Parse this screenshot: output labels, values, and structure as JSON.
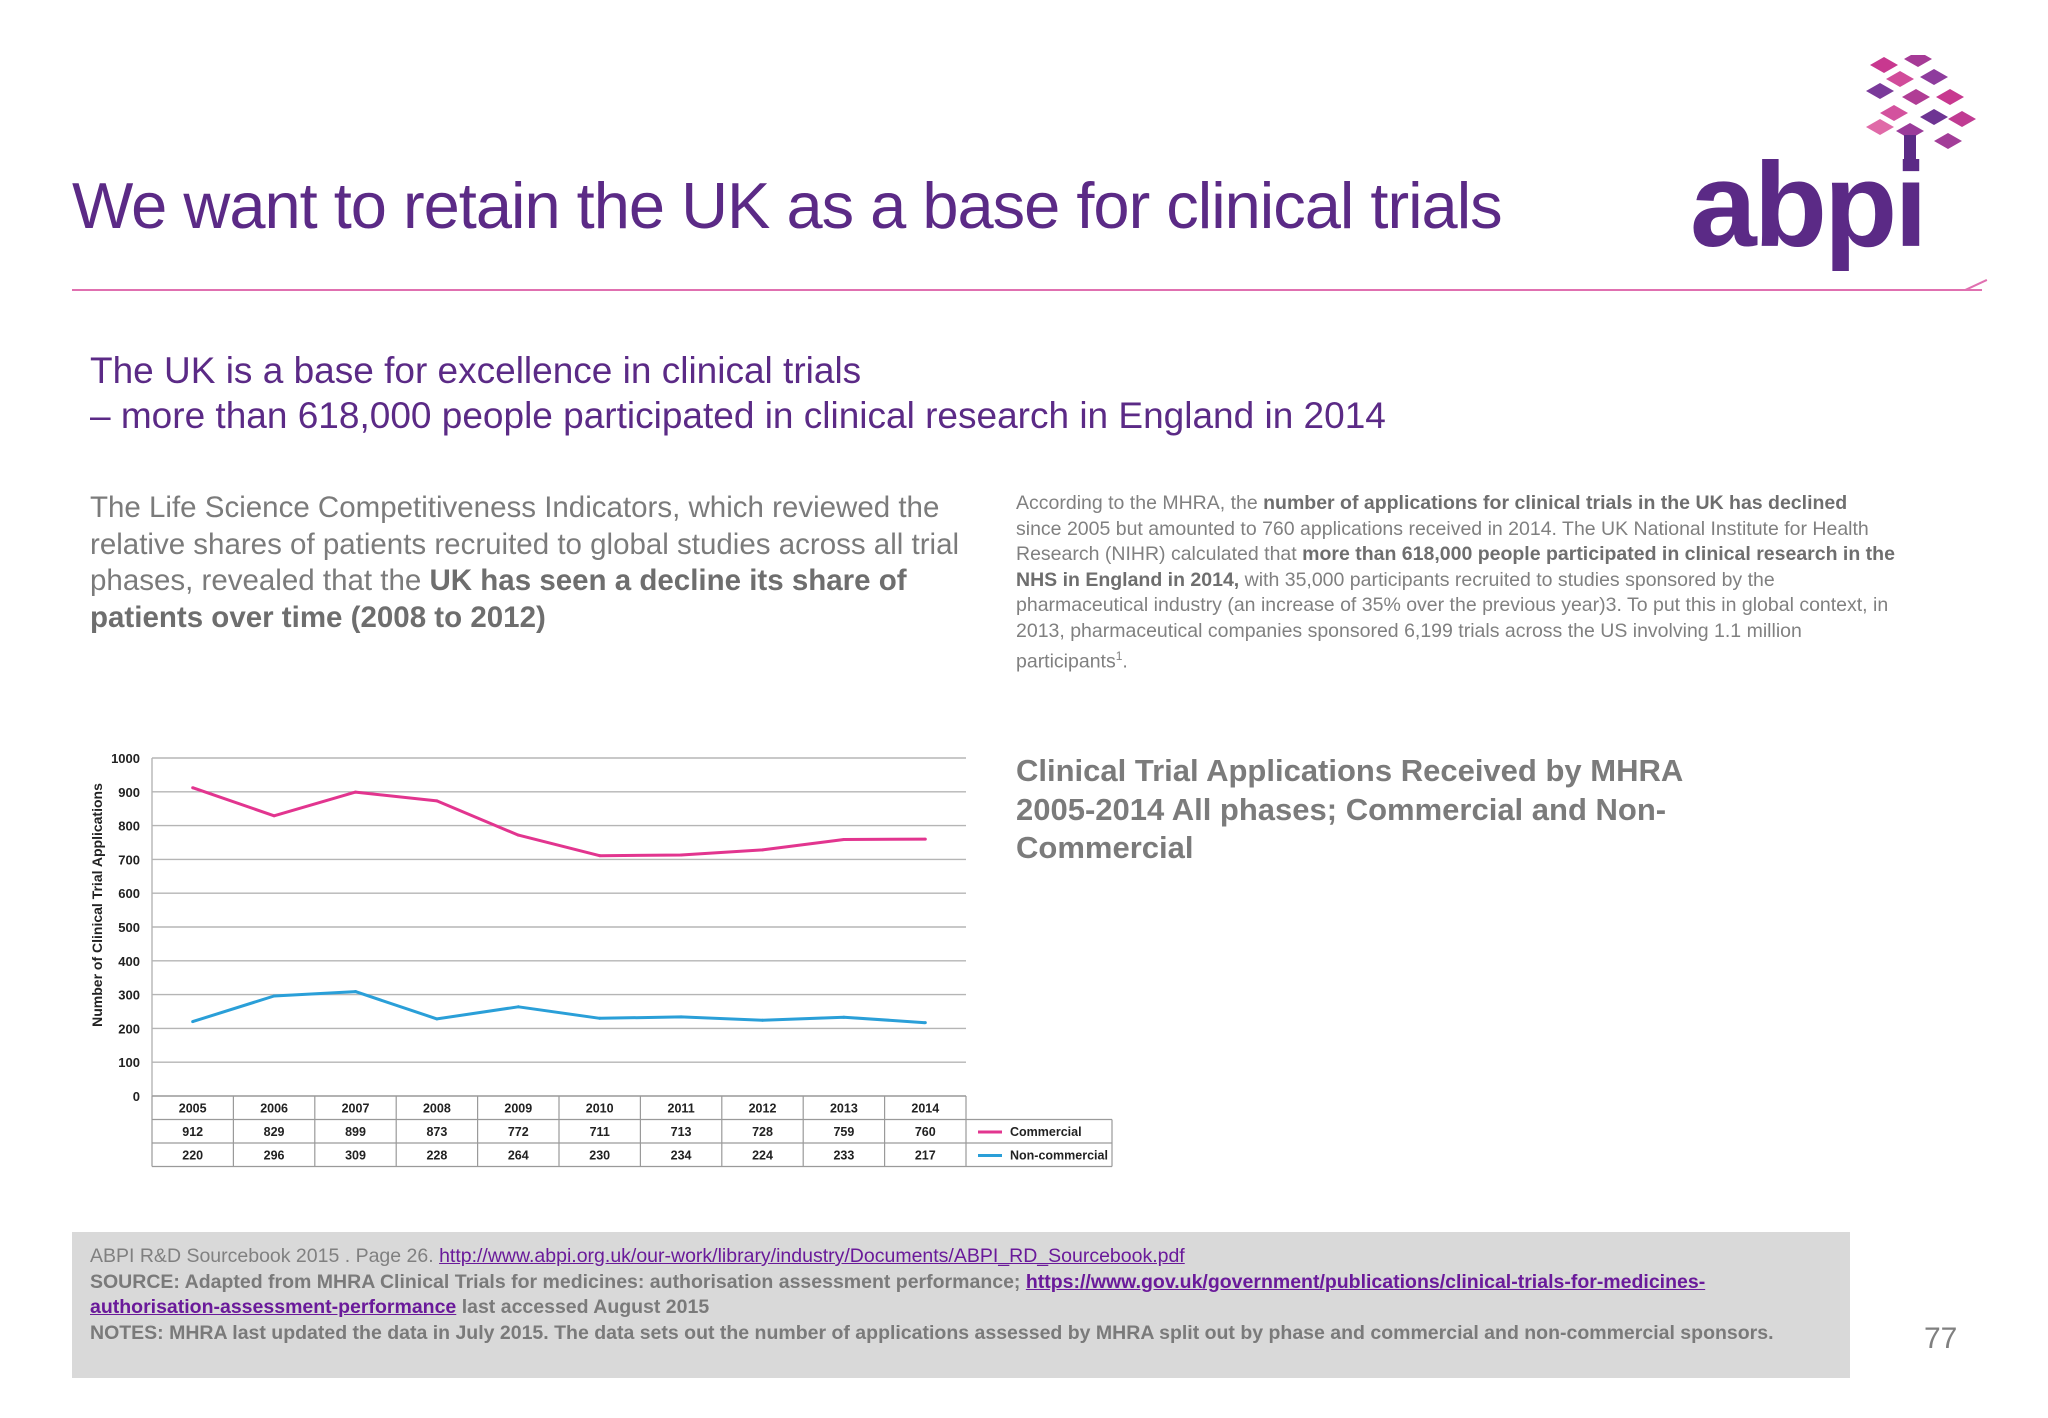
{
  "header": {
    "title": "We want to retain the UK as a base for clinical trials",
    "logo_text": "abpi"
  },
  "subhead": {
    "line1": "The UK is a base for excellence in clinical trials",
    "line2": "– more than 618,000 people participated in clinical research in England in 2014"
  },
  "left_paragraph": {
    "text1": "The Life Science Competitiveness Indicators, which reviewed the relative shares of patients recruited to global studies across all trial phases, revealed that the ",
    "bold": "UK has seen a decline its share of patients over time (2008 to 2012)"
  },
  "right_paragraph": {
    "t1": "According to the MHRA, the ",
    "b1": "number of applications for clinical trials in the UK has declined",
    "t2": " since 2005 but amounted to 760 applications received in 2014. The UK National Institute for Health Research (NIHR) calculated that ",
    "b2": "more than 618,000 people participated in clinical research in the NHS in England in 2014,",
    "t3": " with 35,000 participants recruited to studies sponsored by the pharmaceutical industry (an increase of 35% over the previous year)3. To put this in global context, in 2013, pharmaceutical companies sponsored 6,199 trials across the US involving 1.1 million participants",
    "sup": "1",
    "t4": "."
  },
  "chart_heading": "Clinical Trial Applications Received by MHRA 2005-2014 All phases; Commercial and Non-Commercial",
  "chart_data": {
    "type": "line",
    "ylabel": "Number of Clinical Trial Applications",
    "ylim": [
      0,
      1000
    ],
    "yticks": [
      0,
      100,
      200,
      300,
      400,
      500,
      600,
      700,
      800,
      900,
      1000
    ],
    "x": [
      "2005",
      "2006",
      "2007",
      "2008",
      "2009",
      "2010",
      "2011",
      "2012",
      "2013",
      "2014"
    ],
    "series": [
      {
        "name": "Commercial",
        "color": "#e2358f",
        "values": [
          912,
          829,
          899,
          873,
          772,
          711,
          713,
          728,
          759,
          760
        ]
      },
      {
        "name": "Non-commercial",
        "color": "#2a9fd8",
        "values": [
          220,
          296,
          309,
          228,
          264,
          230,
          234,
          224,
          233,
          217
        ]
      }
    ],
    "grid": true,
    "legend": "table-right"
  },
  "footer": {
    "line1_text": "ABPI R&D Sourcebook 2015 . Page 26. ",
    "line1_link": "http://www.abpi.org.uk/our-work/library/industry/Documents/ABPI_RD_Sourcebook.pdf",
    "source_text": "SOURCE: Adapted from MHRA Clinical Trials for medicines: authorisation assessment performance; ",
    "source_link": "https://www.gov.uk/government/publications/clinical-trials-for-medicines-authorisation-assessment-performance",
    "source_tail": " last accessed August 2015",
    "notes": "NOTES: MHRA last updated the data in July 2015. The data sets out the number of applications assessed by MHRA split out by phase and commercial and non-commercial sponsors."
  },
  "page_number": "77",
  "colors": {
    "brand_purple": "#5b2a86",
    "accent_pink": "#e070b0"
  }
}
